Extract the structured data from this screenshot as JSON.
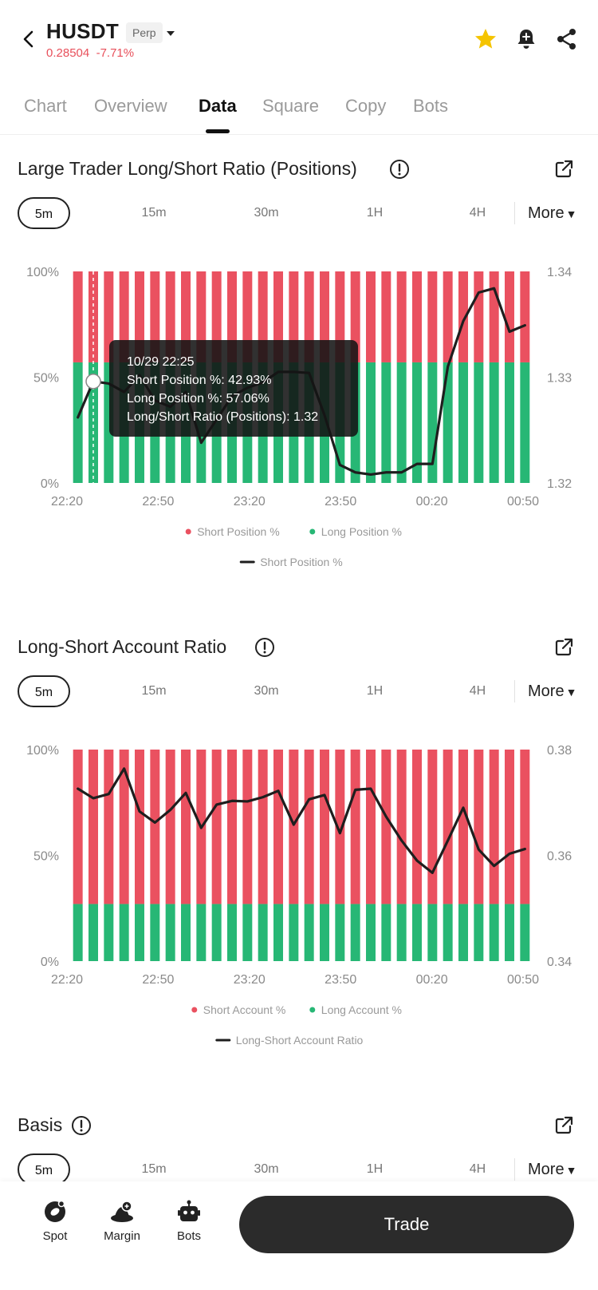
{
  "header": {
    "symbol": "HUSDT",
    "contract_type": "Perp",
    "last_price": "0.28504",
    "change_pct": "-7.71%",
    "change_color": "#e8505b"
  },
  "tabs": [
    {
      "label": "Chart",
      "active": false
    },
    {
      "label": "Overview",
      "active": false
    },
    {
      "label": "Data",
      "active": true
    },
    {
      "label": "Square",
      "active": false
    },
    {
      "label": "Copy",
      "active": false
    },
    {
      "label": "Bots",
      "active": false
    }
  ],
  "timeframes": {
    "options": [
      "5m",
      "15m",
      "30m",
      "1H",
      "4H"
    ],
    "more_label": "More",
    "selected": "5m"
  },
  "colors": {
    "short": "#ea5160",
    "long": "#27b775",
    "line": "#1e1e1e"
  },
  "sections": {
    "large_trader": {
      "title": "Large Trader Long/Short Ratio (Positions)"
    },
    "account_ratio": {
      "title": "Long-Short Account Ratio"
    },
    "basis": {
      "title": "Basis"
    }
  },
  "tooltip": {
    "time": "10/29 22:25",
    "short_line": "Short Position %: 42.93%",
    "long_line": "Long Position %: 57.06%",
    "ratio_line": "Long/Short Ratio (Positions): 1.32"
  },
  "chart_data": [
    {
      "type": "bar",
      "stacked": true,
      "x_tick_labels": [
        "22:20",
        "22:50",
        "23:20",
        "23:50",
        "00:20",
        "00:50"
      ],
      "y_left_ticks": [
        "100%",
        "50%",
        "0%"
      ],
      "y_right_ticks": [
        "1.34",
        "1.33",
        "1.32"
      ],
      "y_left_lim": [
        0,
        100
      ],
      "y_right_lim": [
        1.32,
        1.34
      ],
      "series": [
        {
          "name": "Short Position %",
          "kind": "bar",
          "axis": "left",
          "values": [
            43,
            43,
            43,
            43,
            43,
            43,
            43,
            43,
            43,
            43,
            43,
            43,
            43,
            43,
            43,
            43,
            43,
            43,
            43,
            43,
            43,
            43,
            43,
            43,
            43,
            43,
            43,
            43,
            43,
            43
          ]
        },
        {
          "name": "Long Position %",
          "kind": "bar",
          "axis": "left",
          "values": [
            57,
            57,
            57,
            57,
            57,
            57,
            57,
            57,
            57,
            57,
            57,
            57,
            57,
            57,
            57,
            57,
            57,
            57,
            57,
            57,
            57,
            57,
            57,
            57,
            57,
            57,
            57,
            57,
            57,
            57
          ]
        },
        {
          "name": "Short Position %",
          "kind": "line",
          "axis": "right",
          "values": [
            1.3262,
            1.3296,
            1.3294,
            1.3286,
            1.3302,
            1.3278,
            1.3272,
            1.3286,
            1.3238,
            1.326,
            1.3282,
            1.329,
            1.3295,
            1.3305,
            1.3305,
            1.3304,
            1.3264,
            1.3217,
            1.321,
            1.3208,
            1.321,
            1.321,
            1.3218,
            1.3218,
            1.331,
            1.3353,
            1.338,
            1.3384,
            1.3343,
            1.3349
          ]
        }
      ],
      "legend_bars": [
        "Short Position %",
        "Long Position %"
      ],
      "legend_line": "Short Position %",
      "highlight_index": 1
    },
    {
      "type": "bar",
      "stacked": true,
      "x_tick_labels": [
        "22:20",
        "22:50",
        "23:20",
        "23:50",
        "00:20",
        "00:50"
      ],
      "y_left_ticks": [
        "100%",
        "50%",
        "0%"
      ],
      "y_right_ticks": [
        "0.38",
        "0.36",
        "0.34"
      ],
      "y_left_lim": [
        0,
        100
      ],
      "y_right_lim": [
        0.34,
        0.38
      ],
      "series": [
        {
          "name": "Short Account %",
          "kind": "bar",
          "axis": "left",
          "values": [
            73,
            73,
            73,
            73,
            73,
            73,
            73,
            73,
            73,
            73,
            73,
            73,
            73,
            73,
            73,
            73,
            73,
            73,
            73,
            73,
            73,
            73,
            73,
            73,
            73,
            73,
            73,
            73,
            73,
            73
          ]
        },
        {
          "name": "Long Account %",
          "kind": "bar",
          "axis": "left",
          "values": [
            27,
            27,
            27,
            27,
            27,
            27,
            27,
            27,
            27,
            27,
            27,
            27,
            27,
            27,
            27,
            27,
            27,
            27,
            27,
            27,
            27,
            27,
            27,
            27,
            27,
            27,
            27,
            27,
            27,
            27
          ]
        },
        {
          "name": "Long-Short Account Ratio",
          "kind": "line",
          "axis": "right",
          "values": [
            0.3726,
            0.3708,
            0.3716,
            0.3764,
            0.3683,
            0.3662,
            0.3686,
            0.3718,
            0.3652,
            0.3696,
            0.3703,
            0.3702,
            0.371,
            0.3722,
            0.3658,
            0.3706,
            0.3714,
            0.3642,
            0.3724,
            0.3726,
            0.3673,
            0.3628,
            0.359,
            0.3567,
            0.3628,
            0.369,
            0.3611,
            0.358,
            0.3603,
            0.3612
          ]
        }
      ],
      "legend_bars": [
        "Short Account %",
        "Long Account %"
      ],
      "legend_line": "Long-Short Account Ratio"
    }
  ],
  "bottom_nav": {
    "items": [
      {
        "label": "Spot",
        "icon": "spot-icon"
      },
      {
        "label": "Margin",
        "icon": "margin-icon"
      },
      {
        "label": "Bots",
        "icon": "bots-icon"
      }
    ],
    "trade_label": "Trade"
  }
}
